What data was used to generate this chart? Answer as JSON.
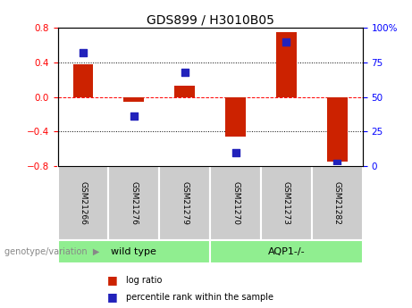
{
  "title": "GDS899 / H3010B05",
  "samples": [
    "GSM21266",
    "GSM21276",
    "GSM21279",
    "GSM21270",
    "GSM21273",
    "GSM21282"
  ],
  "log_ratio": [
    0.38,
    -0.06,
    0.13,
    -0.46,
    0.75,
    -0.75
  ],
  "percentile": [
    82,
    36,
    68,
    10,
    90,
    2
  ],
  "groups": [
    {
      "label": "wild type",
      "indices": [
        0,
        1,
        2
      ],
      "color": "#90ee90"
    },
    {
      "label": "AQP1-/-",
      "indices": [
        3,
        4,
        5
      ],
      "color": "#90ee90"
    }
  ],
  "ylim_left": [
    -0.8,
    0.8
  ],
  "ylim_right": [
    0,
    100
  ],
  "yticks_left": [
    -0.8,
    -0.4,
    0,
    0.4,
    0.8
  ],
  "yticks_right": [
    0,
    25,
    50,
    75,
    100
  ],
  "bar_color": "#cc2200",
  "dot_color": "#2222bb",
  "dot_size": 35,
  "bar_width": 0.4,
  "genotype_label": "genotype/variation",
  "legend_log_ratio": "log ratio",
  "legend_percentile": "percentile rank within the sample",
  "grid_lines": [
    -0.4,
    0.0,
    0.4
  ],
  "grid_line_styles": [
    "dotted",
    "dashed",
    "dotted"
  ],
  "sample_box_color": "#cccccc",
  "plot_bg": "#ffffff"
}
